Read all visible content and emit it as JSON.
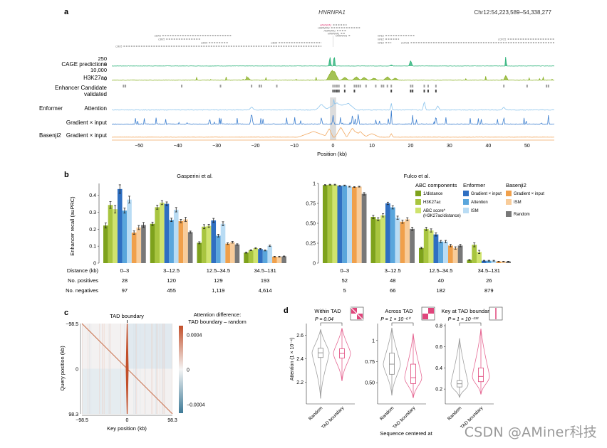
{
  "panel_a": {
    "label": "a",
    "gene_title": "HNRNPA1",
    "coords": "Chr12:54,223,589–54,338,277",
    "genes": [
      {
        "name": "CBX5",
        "start": -44.0,
        "end": -26.0,
        "row": 0
      },
      {
        "name": "CBX5",
        "start": -43.0,
        "end": -34.0,
        "row": 1
      },
      {
        "name": "CBX5",
        "start": -32.0,
        "end": -27.0,
        "row": 2
      },
      {
        "name": "CBX5",
        "start": -54.0,
        "end": -3.0,
        "row": 3
      },
      {
        "name": "CBX5",
        "start": -14.0,
        "end": -3.0,
        "row": 2
      },
      {
        "name": "HNRNPA1",
        "start": 0.0,
        "end": 3.5,
        "row": -4,
        "highlight": true
      },
      {
        "name": "HNRNPA1",
        "start": -0.5,
        "end": 7.0,
        "row": -3
      },
      {
        "name": "HNRNPA1",
        "start": 1.0,
        "end": 3.5,
        "row": -2
      },
      {
        "name": "HNRNPA1",
        "start": 2.0,
        "end": 3.0,
        "row": -1
      },
      {
        "name": "HNRNPA1",
        "start": 4.0,
        "end": 4.5,
        "row": 0
      },
      {
        "name": "NFE2",
        "start": 13.5,
        "end": 21.0,
        "row": 0
      },
      {
        "name": "NFE2",
        "start": 13.5,
        "end": 17.0,
        "row": 1
      },
      {
        "name": "NFE2",
        "start": 13.5,
        "end": 15.0,
        "row": 2
      },
      {
        "name": "COPZ1",
        "start": 20.0,
        "end": 57.0,
        "row": 2
      },
      {
        "name": "COPZ1",
        "start": 45.0,
        "end": 57.0,
        "row": 1
      }
    ],
    "tracks": [
      {
        "name": "CAGE predictions",
        "ymax": "250",
        "ymin": "0",
        "color": "#2db37a"
      },
      {
        "name": "H3K27ac",
        "ymax": "10,000",
        "ymin": "0",
        "color": "#8db32a"
      },
      {
        "name": "Enhancer Candidate",
        "sub": "validated",
        "color": "#9e9e9e",
        "color2": "#444444"
      },
      {
        "group": "Enformer",
        "name": "Attention",
        "color": "#8cc4ec"
      },
      {
        "name": "Gradient × input",
        "color": "#3d7fcf"
      },
      {
        "group": "Basenji2",
        "name": "Gradient × input",
        "color": "#f2a860"
      }
    ],
    "candidates": [
      -54,
      -53.5,
      -39,
      -29,
      -21,
      -19,
      -18.5,
      -14.5,
      0,
      0.5,
      1,
      1.5,
      3,
      5.5,
      6,
      6.5,
      7,
      8.5,
      11,
      12.5,
      13,
      14,
      15,
      20,
      20.5,
      23.5,
      24.5,
      26.5,
      44,
      50,
      55,
      55.5
    ],
    "validated": [
      0,
      0.5,
      1,
      1.5,
      3,
      5.5,
      15,
      20,
      20.5,
      23.5,
      24.5,
      26.5
    ],
    "xaxis": {
      "label": "Position (kb)",
      "ticks": [
        "−50",
        "−40",
        "−30",
        "−20",
        "−10",
        "0",
        "10",
        "20",
        "30",
        "40",
        "50"
      ],
      "tick_values": [
        -50,
        -40,
        -30,
        -20,
        -10,
        0,
        10,
        20,
        30,
        40,
        50
      ],
      "range": [
        -57,
        57
      ]
    }
  },
  "panel_b": {
    "label": "b",
    "ylabel": "Enhancer recall (auPRC)",
    "row_labels": {
      "distance": "Distance (kb)",
      "positives": "No. positives",
      "negatives": "No. negatives"
    },
    "legend": {
      "groups": [
        {
          "title": "ABC components",
          "items": [
            {
              "label": "1/distance",
              "color": "#7ea21c"
            },
            {
              "label": "H3K27ac",
              "color": "#a8c53f"
            },
            {
              "label": "ABC score*",
              "label2": "(H3K27ac/distance)",
              "color": "#cfe36e"
            }
          ]
        },
        {
          "title": "Enformer",
          "items": [
            {
              "label": "Gradient × input",
              "color": "#2f6fc2"
            },
            {
              "label": "Attention",
              "color": "#5aa6dc"
            },
            {
              "label": "ISM",
              "color": "#b9dcf4"
            }
          ]
        },
        {
          "title": "Basenji2",
          "items": [
            {
              "label": "Gradient × input",
              "color": "#f0a04b"
            },
            {
              "label": "ISM",
              "color": "#f8cc9a"
            },
            {
              "label": "Random",
              "color": "#787878"
            }
          ]
        }
      ]
    }
  },
  "panel_c": {
    "label": "c",
    "title": "TAD boundary",
    "xlabel": "Key position (kb)",
    "ylabel": "Query position (kb)",
    "xticks": [
      "−98.5",
      "0",
      "98.3"
    ],
    "yticks": [
      "−98.5",
      "0",
      "98.3"
    ],
    "colorbar_title": "Attention difference:",
    "colorbar_title2": "TAD boundary – random",
    "colorbar_ticks": [
      "0.0004",
      "0",
      "−0.0004"
    ]
  },
  "panel_d": {
    "label": "d",
    "ylabel": "Attention (1 × 10⁻⁴)",
    "xlabel": "Sequence centered at",
    "categories": [
      "Random",
      "TAD boundary"
    ]
  },
  "chart_data": [
    {
      "type": "bar",
      "title": "Gasperini et al.",
      "ylabel": "Enhancer recall (auPRC)",
      "ylim": [
        0,
        0.47
      ],
      "yticks": [
        "0",
        "0.1",
        "0.2",
        "0.3",
        "0.4"
      ],
      "ytick_values": [
        0,
        0.1,
        0.2,
        0.3,
        0.4
      ],
      "categories": [
        "0–3",
        "3–12.5",
        "12.5–34.5",
        "34.5–131"
      ],
      "positives": [
        "28",
        "120",
        "129",
        "193"
      ],
      "negatives": [
        "97",
        "455",
        "1,119",
        "4,614"
      ],
      "series": [
        {
          "name": "1/distance",
          "color": "#7ea21c",
          "values": [
            0.222,
            0.232,
            0.12,
            0.062
          ],
          "err": [
            0.015,
            0.01,
            0.006,
            0.003
          ]
        },
        {
          "name": "H3K27ac",
          "color": "#a8c53f",
          "values": [
            0.343,
            0.33,
            0.215,
            0.076
          ],
          "err": [
            0.02,
            0.012,
            0.012,
            0.003
          ]
        },
        {
          "name": "ABC score",
          "color": "#cfe36e",
          "values": [
            0.318,
            0.357,
            0.22,
            0.088
          ],
          "err": [
            0.022,
            0.012,
            0.009,
            0.003
          ]
        },
        {
          "name": "Enformer Gradient × input",
          "color": "#2f6fc2",
          "values": [
            0.437,
            0.35,
            0.252,
            0.083
          ],
          "err": [
            0.025,
            0.011,
            0.012,
            0.003
          ]
        },
        {
          "name": "Enformer Attention",
          "color": "#5aa6dc",
          "values": [
            0.31,
            0.255,
            0.162,
            0.075
          ],
          "err": [
            0.015,
            0.01,
            0.008,
            0.003
          ]
        },
        {
          "name": "Enformer ISM",
          "color": "#b9dcf4",
          "values": [
            0.375,
            0.315,
            0.232,
            0.102
          ],
          "err": [
            0.02,
            0.013,
            0.012,
            0.004
          ]
        },
        {
          "name": "Basenji2 Gradient × input",
          "color": "#f0a04b",
          "values": [
            0.18,
            0.248,
            0.115,
            0.038
          ],
          "err": [
            0.01,
            0.01,
            0.005,
            0.002
          ]
        },
        {
          "name": "Basenji2 ISM",
          "color": "#f8cc9a",
          "values": [
            0.21,
            0.258,
            0.123,
            0.038
          ],
          "err": [
            0.012,
            0.012,
            0.005,
            0.002
          ]
        },
        {
          "name": "Random",
          "color": "#787878",
          "values": [
            0.225,
            0.183,
            0.11,
            0.04
          ],
          "err": [
            0.015,
            0.006,
            0.004,
            0.002
          ]
        }
      ]
    },
    {
      "type": "bar",
      "title": "Fulco et al.",
      "ylim": [
        0,
        1.0
      ],
      "yticks": [
        "0",
        "0.25",
        "0.50",
        "0.75",
        "1"
      ],
      "ytick_values": [
        0,
        0.25,
        0.5,
        0.75,
        1
      ],
      "categories": [
        "0–3",
        "3–12.5",
        "12.5–34.5",
        "34.5–131"
      ],
      "positives": [
        "52",
        "48",
        "40",
        "26"
      ],
      "negatives": [
        "5",
        "66",
        "182",
        "879"
      ],
      "series": [
        {
          "name": "1/distance",
          "color": "#7ea21c",
          "values": [
            0.98,
            0.58,
            0.19,
            0.04
          ],
          "err": [
            0.005,
            0.02,
            0.01,
            0.005
          ]
        },
        {
          "name": "H3K27ac",
          "color": "#a8c53f",
          "values": [
            0.985,
            0.55,
            0.43,
            0.23
          ],
          "err": [
            0.005,
            0.02,
            0.02,
            0.025
          ]
        },
        {
          "name": "ABC score",
          "color": "#cfe36e",
          "values": [
            0.985,
            0.6,
            0.41,
            0.14
          ],
          "err": [
            0.005,
            0.02,
            0.02,
            0.02
          ]
        },
        {
          "name": "Enformer Gradient × input",
          "color": "#2f6fc2",
          "values": [
            0.97,
            0.75,
            0.36,
            0.03
          ],
          "err": [
            0.005,
            0.015,
            0.02,
            0.005
          ]
        },
        {
          "name": "Enformer Attention",
          "color": "#5aa6dc",
          "values": [
            0.975,
            0.7,
            0.27,
            0.03
          ],
          "err": [
            0.005,
            0.02,
            0.015,
            0.005
          ]
        },
        {
          "name": "Enformer ISM",
          "color": "#b9dcf4",
          "values": [
            0.96,
            0.57,
            0.27,
            0.03
          ],
          "err": [
            0.005,
            0.02,
            0.015,
            0.005
          ]
        },
        {
          "name": "Basenji2 Gradient × input",
          "color": "#f0a04b",
          "values": [
            0.955,
            0.52,
            0.22,
            0.02
          ],
          "err": [
            0.005,
            0.02,
            0.015,
            0.003
          ]
        },
        {
          "name": "Basenji2 ISM",
          "color": "#f8cc9a",
          "values": [
            0.96,
            0.55,
            0.19,
            0.02
          ],
          "err": [
            0.005,
            0.02,
            0.015,
            0.003
          ]
        },
        {
          "name": "Random",
          "color": "#787878",
          "values": [
            0.87,
            0.43,
            0.22,
            0.02
          ],
          "err": [
            0.015,
            0.02,
            0.015,
            0.003
          ]
        }
      ]
    },
    {
      "type": "heatmap",
      "title": "TAD boundary",
      "xlabel": "Key position (kb)",
      "ylabel": "Query position (kb)",
      "xrange": [
        -98.5,
        98.3
      ],
      "yrange": [
        -98.5,
        98.3
      ],
      "colorbar": {
        "min": -0.0004,
        "max": 0.0004,
        "low_color": "#3e7a97",
        "mid_color": "#f5f5f5",
        "high_color": "#c24f2a"
      }
    },
    {
      "type": "violin",
      "panels": [
        {
          "title": "Within TAD",
          "p_value": "P = 0.04",
          "ylim": [
            2.05,
            2.7
          ],
          "yticks": [
            "2.2",
            "2.4",
            "2.6"
          ],
          "ytick_values": [
            2.2,
            2.4,
            2.6
          ],
          "groups": [
            {
              "name": "Random",
              "median": 2.45,
              "q1": 2.41,
              "q3": 2.49,
              "min": 2.06,
              "max": 2.65,
              "color": "#8a8a8a"
            },
            {
              "name": "TAD boundary",
              "median": 2.445,
              "q1": 2.405,
              "q3": 2.485,
              "min": 2.21,
              "max": 2.66,
              "color": "#e0457b"
            }
          ]
        },
        {
          "title": "Across TAD",
          "p_value": "P = 1 × 10⁻⁶⁰",
          "ylim": [
            0.3,
            1.2
          ],
          "yticks": [
            "0.50",
            "0.75",
            "1"
          ],
          "ytick_values": [
            0.5,
            0.75,
            1.0
          ],
          "groups": [
            {
              "name": "Random",
              "median": 0.72,
              "q1": 0.6,
              "q3": 0.85,
              "min": 0.35,
              "max": 1.15,
              "color": "#8a8a8a"
            },
            {
              "name": "TAD boundary",
              "median": 0.56,
              "q1": 0.49,
              "q3": 0.72,
              "min": 0.32,
              "max": 1.08,
              "color": "#e0457b"
            }
          ]
        },
        {
          "title": "Key at TAD boundary",
          "p_value": "P = 1 × 10⁻¹³³",
          "ylim": [
            0.1,
            0.82
          ],
          "yticks": [
            "0.2",
            "0.4",
            "0.6",
            "0.8"
          ],
          "ytick_values": [
            0.2,
            0.4,
            0.6,
            0.8
          ],
          "groups": [
            {
              "name": "Random",
              "median": 0.25,
              "q1": 0.22,
              "q3": 0.28,
              "min": 0.12,
              "max": 0.68,
              "color": "#8a8a8a"
            },
            {
              "name": "TAD boundary",
              "median": 0.32,
              "q1": 0.27,
              "q3": 0.4,
              "min": 0.15,
              "max": 0.77,
              "color": "#e0457b"
            }
          ]
        }
      ]
    }
  ],
  "watermark": "CSDN @AMiner科技"
}
